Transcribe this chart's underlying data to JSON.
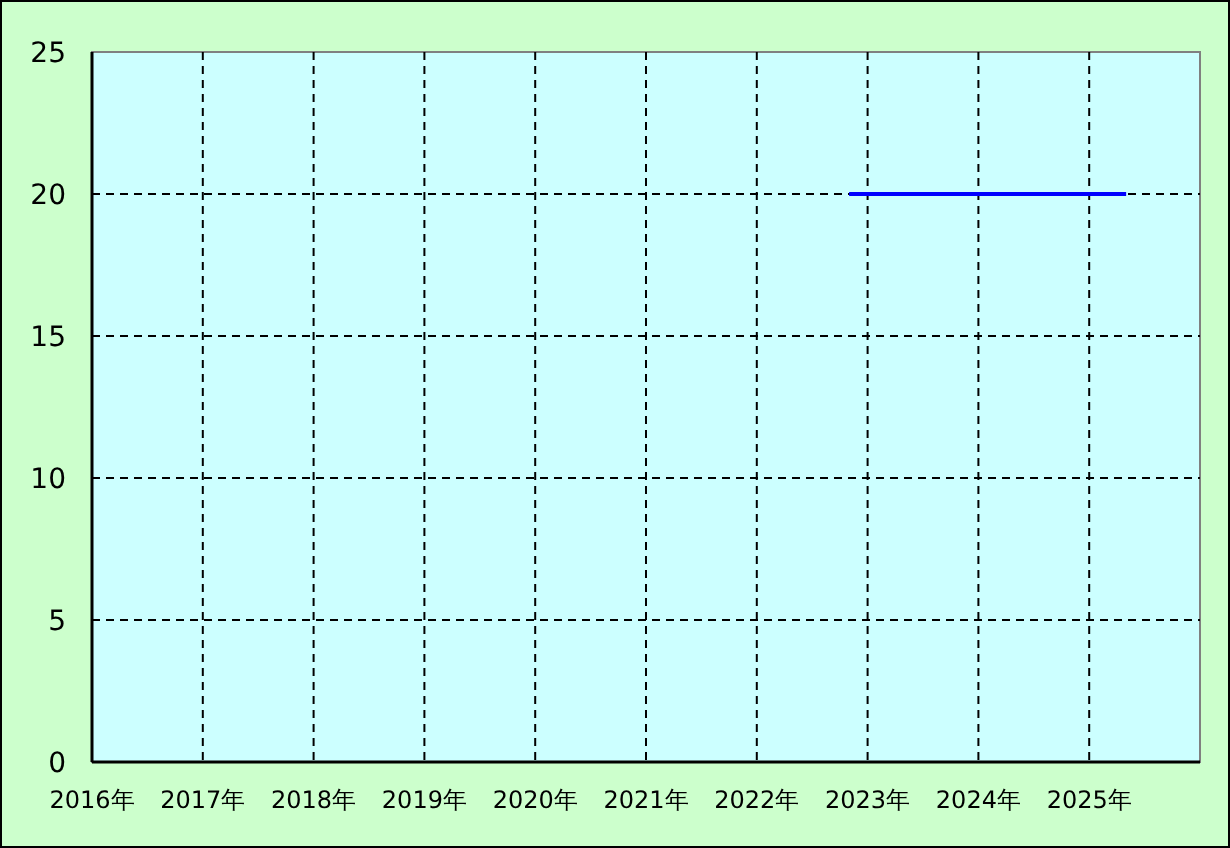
{
  "chart_data": {
    "type": "line",
    "series": [
      {
        "color": "#0000ff",
        "x": [
          "2022-11",
          "2025-05"
        ],
        "values": [
          20,
          20
        ]
      }
    ],
    "xlim": [
      "2016",
      "2026"
    ],
    "xticks": [
      {
        "value": "2016",
        "label": "2016年"
      },
      {
        "value": "2017",
        "label": "2017年"
      },
      {
        "value": "2018",
        "label": "2018年"
      },
      {
        "value": "2019",
        "label": "2019年"
      },
      {
        "value": "2020",
        "label": "2020年"
      },
      {
        "value": "2021",
        "label": "2021年"
      },
      {
        "value": "2022",
        "label": "2022年"
      },
      {
        "value": "2023",
        "label": "2023年"
      },
      {
        "value": "2024",
        "label": "2024年"
      },
      {
        "value": "2025",
        "label": "2025年"
      }
    ],
    "ylim": [
      0,
      25
    ],
    "yticks": [
      0,
      5,
      10,
      15,
      20,
      25
    ],
    "grid": true,
    "line_style": "solid"
  }
}
